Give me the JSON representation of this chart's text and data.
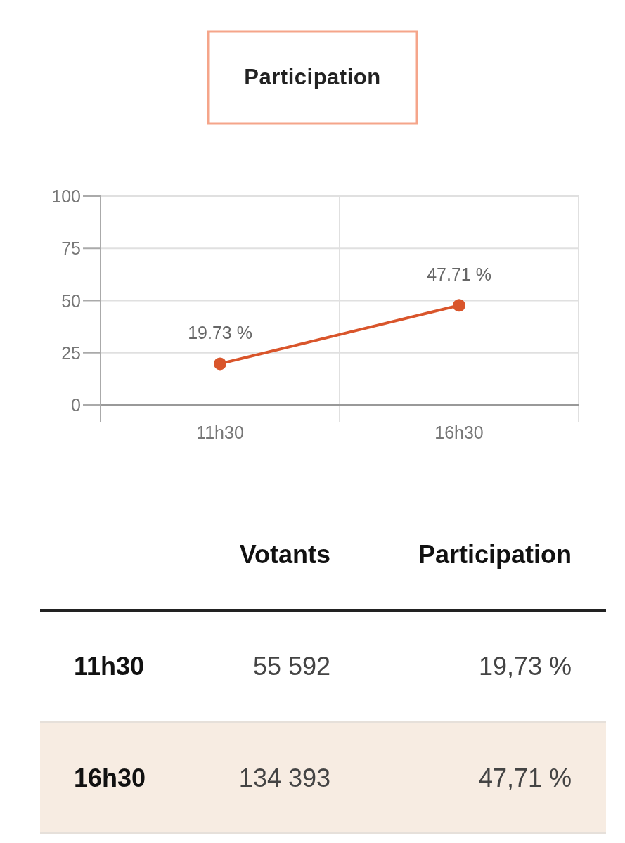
{
  "chart_data": [
    {
      "type": "line",
      "title": "Participation",
      "categories": [
        "11h30",
        "16h30"
      ],
      "ylim": [
        0,
        100
      ],
      "yticks": [
        0,
        25,
        50,
        75,
        100
      ],
      "grid": true,
      "marker": "circle",
      "series": [
        {
          "color": "#d9552b",
          "values": [
            19.73,
            47.71
          ],
          "value_labels": [
            "19.73 %",
            "47.71 %"
          ]
        }
      ]
    },
    {
      "type": "other",
      "categories": [
        "11h30",
        "16h30"
      ],
      "series": [
        {
          "name": "Votants",
          "values": [
            55592,
            134393
          ],
          "value_labels": [
            "55 592",
            "134 393"
          ]
        },
        {
          "name": "Participation",
          "values": [
            19.73,
            47.71
          ],
          "value_labels": [
            "19,73 %",
            "47,71 %"
          ]
        }
      ]
    }
  ]
}
